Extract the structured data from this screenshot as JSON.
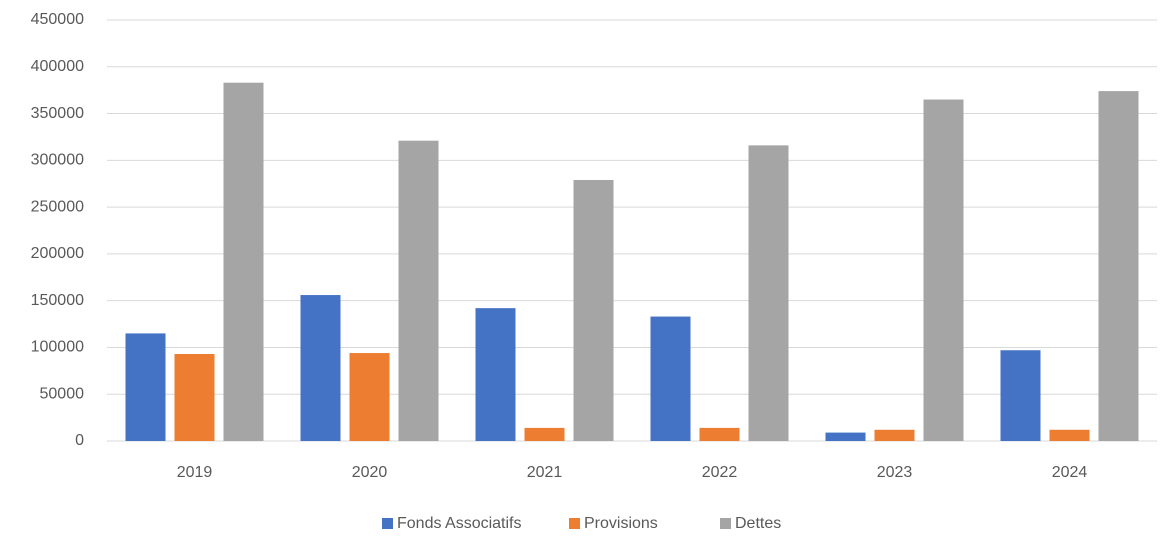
{
  "chart_data": {
    "type": "bar",
    "categories": [
      "2019",
      "2020",
      "2021",
      "2022",
      "2023",
      "2024"
    ],
    "series": [
      {
        "name": "Fonds Associatifs",
        "color": "#4472c4",
        "values": [
          115000,
          156000,
          142000,
          133000,
          9000,
          97000
        ]
      },
      {
        "name": "Provisions",
        "color": "#ed7d31",
        "values": [
          93000,
          94000,
          14000,
          14000,
          12000,
          12000
        ]
      },
      {
        "name": "Dettes",
        "color": "#a5a5a5",
        "values": [
          383000,
          321000,
          279000,
          316000,
          365000,
          374000
        ]
      }
    ],
    "ylim": [
      0,
      450000
    ],
    "yticks": [
      0,
      50000,
      100000,
      150000,
      200000,
      250000,
      300000,
      350000,
      400000,
      450000
    ],
    "grid": true,
    "legend": "bottom"
  }
}
